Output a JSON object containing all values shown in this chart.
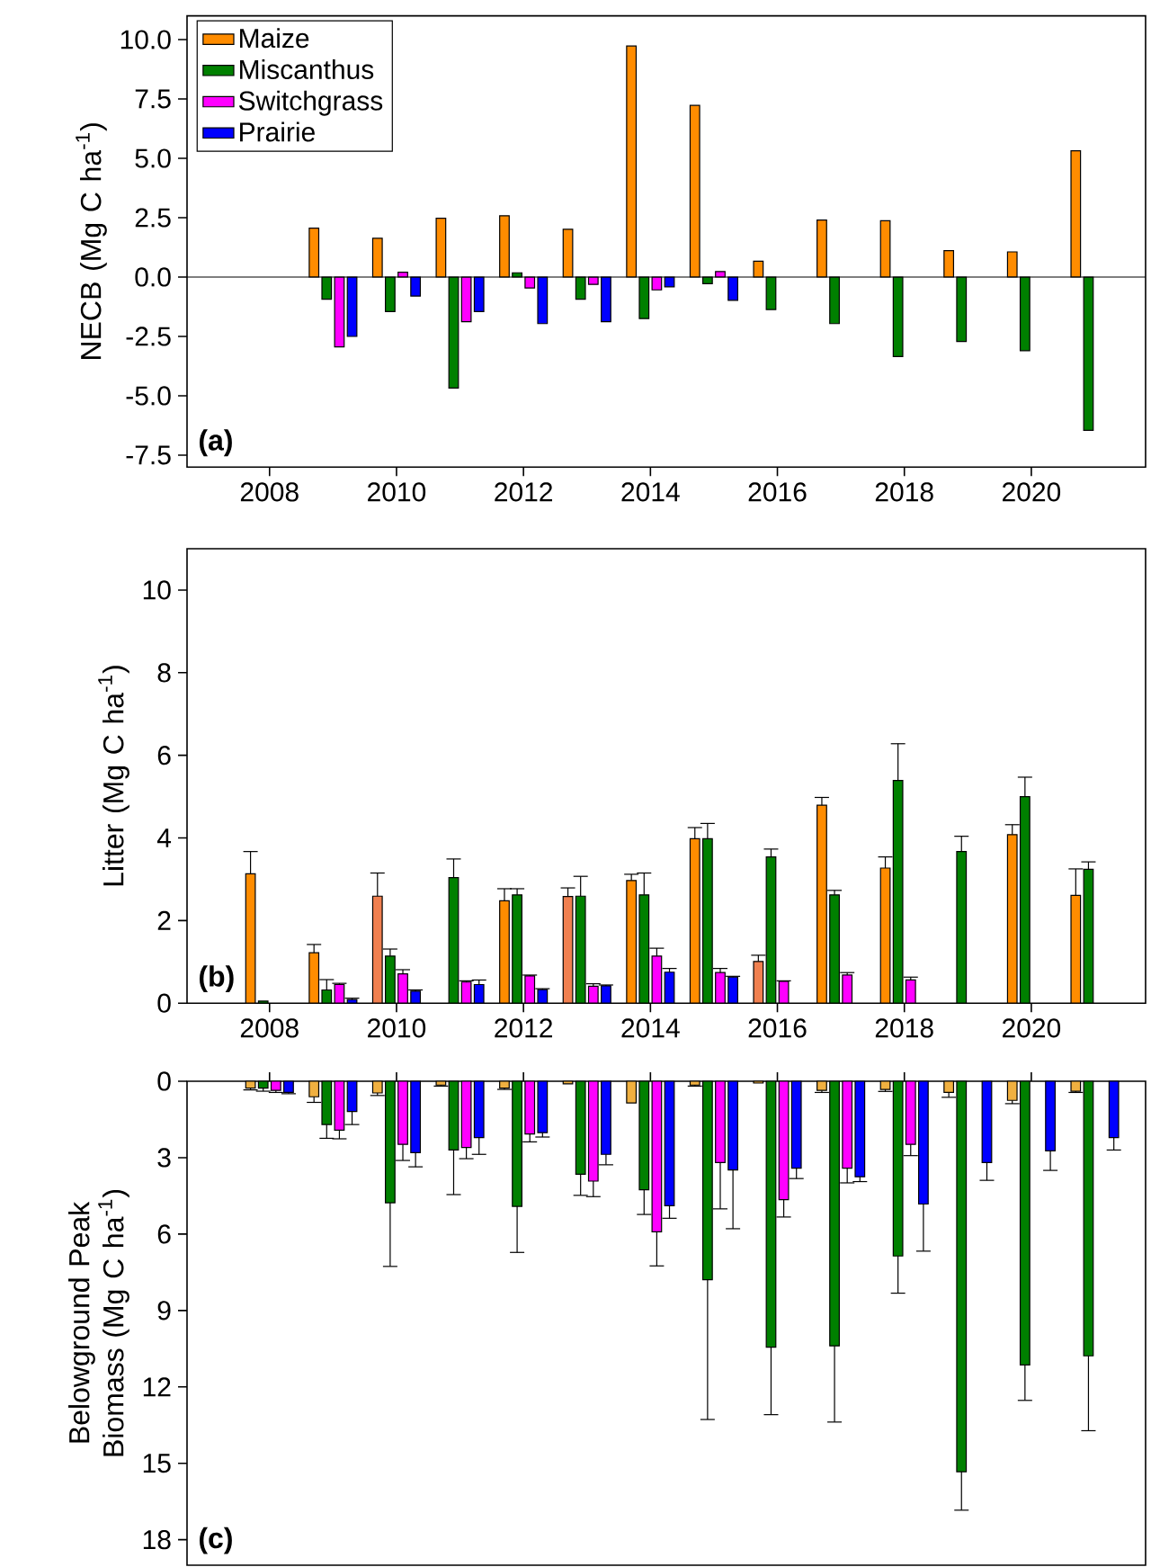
{
  "chart_data": [
    {
      "type": "bar",
      "ylabel": "NECB (Mg C ha$^{-1}$)",
      "x": [
        2009,
        2010,
        2011,
        2012,
        2013,
        2014,
        2015,
        2016,
        2017,
        2018,
        2019,
        2020,
        2021
      ],
      "xlim": [
        2006.7,
        2021.8
      ],
      "xticks": [
        2008,
        2010,
        2012,
        2014,
        2016,
        2018,
        2020
      ],
      "ylim": [
        -8,
        11
      ],
      "yticks": [
        {
          "value": -7.5,
          "label": "-7.5"
        },
        {
          "value": -5,
          "label": "-5.0"
        },
        {
          "value": -2.5,
          "label": "-2.5"
        },
        {
          "value": 0,
          "label": "0.0"
        },
        {
          "value": 2.5,
          "label": "2.5"
        },
        {
          "value": 5,
          "label": "5.0"
        },
        {
          "value": 7.5,
          "label": "7.5"
        },
        {
          "value": 10,
          "label": "10.0"
        }
      ],
      "legend": "top left",
      "annotations": [
        "(a)"
      ],
      "series": [
        {
          "name": "Maize",
          "color": "#ff8c00",
          "values": [
            2.06,
            1.63,
            2.48,
            2.58,
            2.01,
            9.73,
            7.23,
            0.67,
            2.4,
            2.37,
            1.11,
            1.06,
            5.32
          ]
        },
        {
          "name": "Miscanthus",
          "color": "#008000",
          "values": [
            -0.93,
            -1.45,
            -4.67,
            0.18,
            -0.93,
            -1.75,
            -0.28,
            -1.37,
            -1.96,
            -3.35,
            -2.71,
            -3.1,
            -6.45
          ]
        },
        {
          "name": "Switchgrass",
          "color": "#ff00ff",
          "values": [
            -2.94,
            0.2,
            -1.88,
            -0.46,
            -0.31,
            -0.54,
            0.23,
            null,
            null,
            null,
            null,
            null,
            null
          ]
        },
        {
          "name": "Prairie",
          "color": "#0000ff",
          "values": [
            -2.5,
            -0.8,
            -1.45,
            -1.96,
            -1.88,
            -0.41,
            -0.98,
            null,
            null,
            null,
            null,
            null,
            null
          ]
        }
      ]
    },
    {
      "type": "bar",
      "ylabel": "Litter (Mg C ha$^{-1}$)",
      "x": [
        2008,
        2009,
        2010,
        2011,
        2012,
        2013,
        2014,
        2015,
        2016,
        2017,
        2018,
        2019,
        2020,
        2021
      ],
      "xlim": [
        2006.7,
        2021.8
      ],
      "xticks": [
        2008,
        2010,
        2012,
        2014,
        2016,
        2018,
        2020
      ],
      "ylim": [
        0,
        11
      ],
      "yticks": [
        0,
        2,
        4,
        6,
        8,
        10
      ],
      "annotations": [
        "(b)"
      ],
      "series": [
        {
          "colors": [
            "#ff8c00",
            "#ff8c00",
            "#f08050",
            "#ff8c00",
            "#ff8c00",
            "#f08050",
            "#ff8c00",
            "#ff8c00",
            "#f08050",
            "#ff8c00",
            "#ff8c00",
            "#ff8c00",
            "#ff8c00",
            "#ff8c00"
          ],
          "values": [
            3.13,
            1.22,
            2.59,
            null,
            2.48,
            2.58,
            2.97,
            3.98,
            1.01,
            4.79,
            3.27,
            null,
            4.08,
            2.61
          ],
          "errors": [
            0.54,
            0.2,
            0.56,
            null,
            0.29,
            0.21,
            0.15,
            0.27,
            0.15,
            0.19,
            0.27,
            null,
            0.24,
            0.64
          ]
        },
        {
          "color": "#008000",
          "values": [
            0.05,
            0.32,
            1.14,
            3.04,
            2.62,
            2.59,
            2.62,
            3.98,
            3.54,
            2.62,
            5.39,
            3.67,
            5.0,
            3.24
          ],
          "errors": [
            null,
            0.25,
            0.17,
            0.45,
            0.15,
            0.48,
            0.53,
            0.37,
            0.19,
            0.11,
            0.89,
            0.37,
            0.47,
            0.18
          ]
        },
        {
          "color": "#ff00ff",
          "values": [
            null,
            0.45,
            0.71,
            0.51,
            0.66,
            0.41,
            1.14,
            0.74,
            0.53,
            0.68,
            0.56,
            null,
            null,
            null
          ],
          "errors": [
            null,
            0.03,
            0.1,
            0.03,
            0.02,
            0.06,
            0.19,
            0.1,
            0.01,
            0.06,
            0.07,
            null,
            null,
            null
          ]
        },
        {
          "color": "#0000ff",
          "values": [
            null,
            0.09,
            0.29,
            0.45,
            0.33,
            0.42,
            0.75,
            0.63,
            null,
            null,
            null,
            null,
            null,
            null
          ],
          "errors": [
            null,
            0.03,
            0.03,
            0.11,
            0.02,
            0.02,
            0.09,
            0.02,
            null,
            null,
            null,
            null,
            null,
            null
          ]
        }
      ]
    },
    {
      "type": "bar",
      "ylabel": "Belowground Peak Biomass (Mg C ha$^{-1}$)",
      "x": [
        2008,
        2009,
        2010,
        2011,
        2012,
        2013,
        2014,
        2015,
        2016,
        2017,
        2018,
        2019,
        2020,
        2021
      ],
      "xlim": [
        2006.7,
        2021.8
      ],
      "xticks": [
        2008,
        2010,
        2012,
        2014,
        2016,
        2018,
        2020
      ],
      "ylim": [
        19,
        0
      ],
      "yticks": [
        0,
        3,
        6,
        9,
        12,
        15,
        18
      ],
      "tick_labels": "y",
      "annotations": [
        "(c)"
      ],
      "series": [
        {
          "color": "#f0b040",
          "values": [
            0.27,
            0.61,
            0.46,
            0.15,
            0.27,
            0.1,
            0.85,
            0.15,
            0.07,
            0.36,
            0.32,
            0.44,
            0.75,
            0.39
          ],
          "errors": [
            0.07,
            0.22,
            0.1,
            0.04,
            0.05,
            null,
            null,
            0.04,
            null,
            0.08,
            0.08,
            0.19,
            0.13,
            0.05
          ]
        },
        {
          "color": "#008000",
          "values": [
            0.27,
            1.7,
            4.77,
            2.7,
            4.91,
            3.65,
            4.26,
            7.79,
            10.44,
            10.39,
            6.86,
            15.33,
            11.14,
            10.78
          ],
          "errors": [
            0.12,
            0.54,
            2.5,
            1.75,
            1.81,
            0.83,
            0.97,
            5.49,
            2.65,
            2.99,
            1.46,
            1.51,
            1.39,
            2.94
          ]
        },
        {
          "color": "#ff00ff",
          "values": [
            0.36,
            1.92,
            2.48,
            2.6,
            2.07,
            3.92,
            5.91,
            3.19,
            4.65,
            3.41,
            2.48,
            null,
            null,
            null
          ],
          "errors": [
            0.08,
            0.34,
            0.63,
            0.44,
            0.31,
            0.61,
            1.34,
            1.82,
            0.68,
            0.58,
            0.44,
            null,
            null,
            null
          ]
        },
        {
          "color": "#0000ff",
          "values": [
            0.44,
            1.19,
            2.8,
            2.21,
            2.02,
            2.87,
            4.89,
            3.48,
            3.41,
            3.75,
            4.82,
            3.19,
            2.73,
            2.21
          ],
          "errors": [
            0.05,
            0.51,
            0.56,
            0.66,
            0.17,
            0.41,
            0.49,
            2.31,
            0.41,
            0.19,
            1.85,
            0.7,
            0.77,
            0.49
          ]
        }
      ]
    }
  ]
}
